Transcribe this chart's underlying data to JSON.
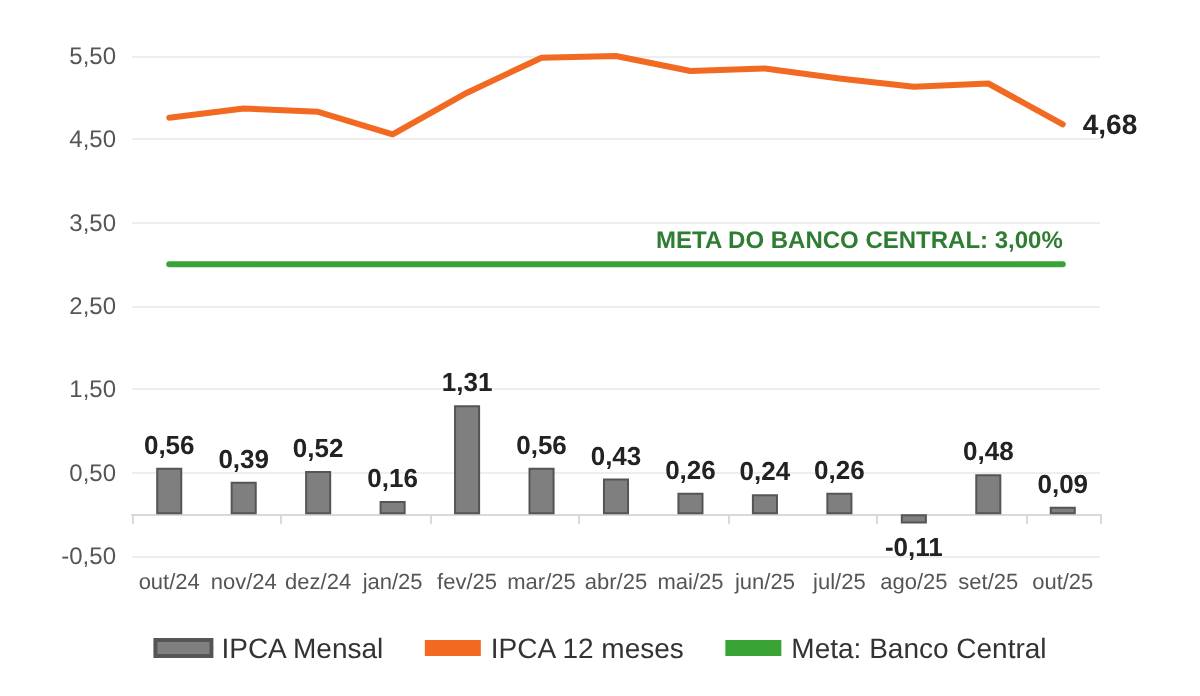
{
  "chart_data": {
    "type": "bar",
    "categories": [
      "out/24",
      "nov/24",
      "dez/24",
      "jan/25",
      "fev/25",
      "mar/25",
      "abr/25",
      "mai/25",
      "jun/25",
      "jul/25",
      "ago/25",
      "set/25",
      "out/25"
    ],
    "series": [
      {
        "name": "IPCA Mensal",
        "color": "#7f7f7f",
        "values": [
          0.56,
          0.39,
          0.52,
          0.16,
          1.31,
          0.56,
          0.43,
          0.26,
          0.24,
          0.26,
          -0.11,
          0.48,
          0.09
        ],
        "value_labels": [
          "0,56",
          "0,39",
          "0,52",
          "0,16",
          "1,31",
          "0,56",
          "0,43",
          "0,26",
          "0,24",
          "0,26",
          "-0,11",
          "0,48",
          "0,09"
        ]
      },
      {
        "name": "IPCA 12 meses",
        "type": "line",
        "color": "#f26a21",
        "values": [
          4.76,
          4.87,
          4.83,
          4.56,
          5.06,
          5.48,
          5.5,
          5.32,
          5.35,
          5.23,
          5.13,
          5.17,
          4.68
        ],
        "value_labels": [
          null,
          null,
          null,
          null,
          null,
          null,
          null,
          null,
          null,
          null,
          null,
          null,
          "4,68"
        ]
      },
      {
        "name": "Meta: Banco Central",
        "type": "line",
        "color": "#3aa335",
        "values": [
          3,
          3,
          3,
          3,
          3,
          3,
          3,
          3,
          3,
          3,
          3,
          3,
          3
        ]
      }
    ],
    "annotations": [
      {
        "text": "META DO BANCO CENTRAL: 3,00%",
        "x": "out/25",
        "y": 3
      }
    ],
    "ylim": [
      -0.5,
      5.5
    ],
    "yticks": [
      {
        "value": -0.5,
        "label": "-0,50"
      },
      {
        "value": 0.5,
        "label": "0,50"
      },
      {
        "value": 1.5,
        "label": "1,50"
      },
      {
        "value": 2.5,
        "label": "2,50"
      },
      {
        "value": 3.5,
        "label": "3,50"
      },
      {
        "value": 4.5,
        "label": "4,50"
      },
      {
        "value": 5.5,
        "label": "5,50"
      }
    ],
    "grid": "y",
    "legend": "bottom",
    "marker": "none",
    "line_style": "solid"
  }
}
